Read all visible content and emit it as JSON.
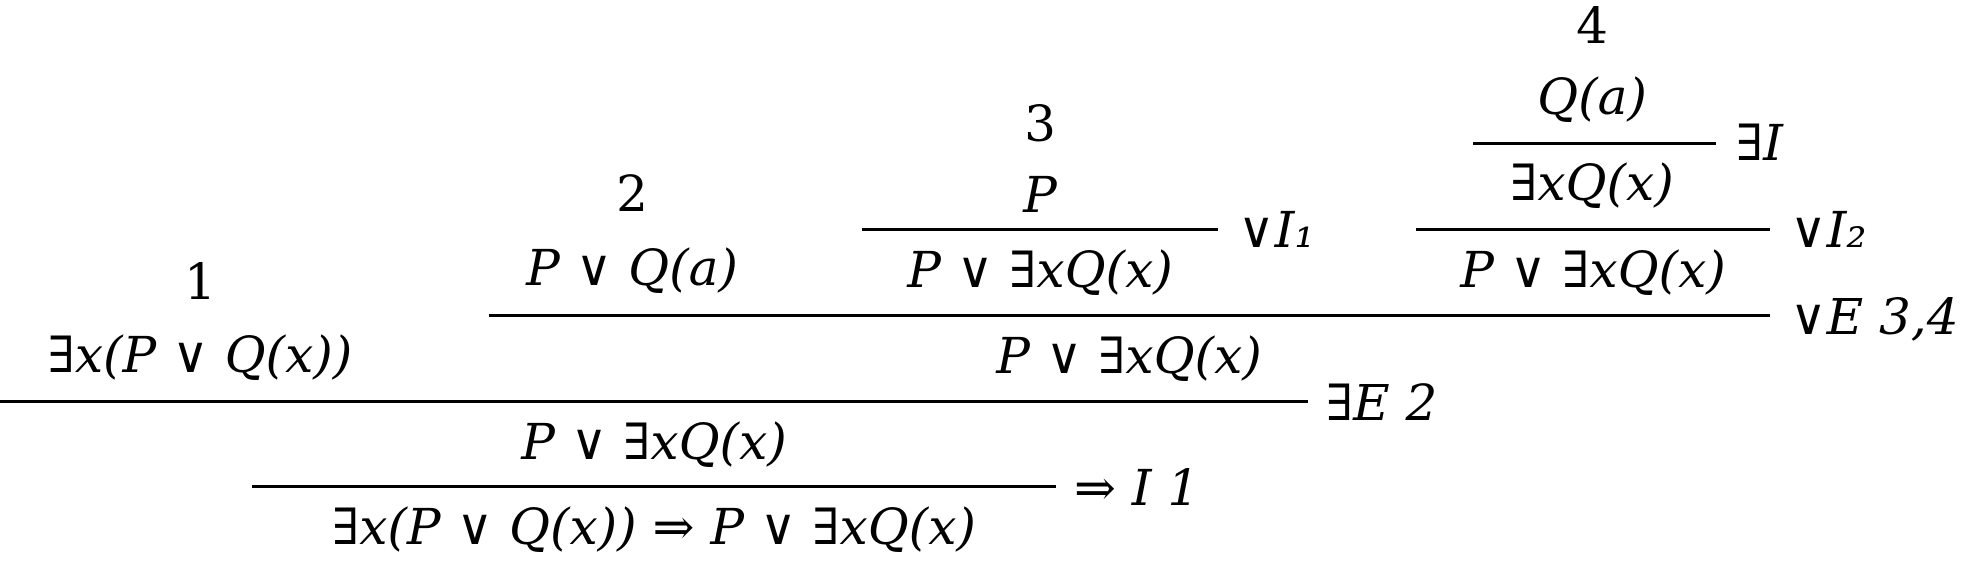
{
  "proof": {
    "hyp1": {
      "label": "1",
      "formula": "∃x(P ∨ Q(x))"
    },
    "hyp2": {
      "label": "2",
      "formula": "P ∨ Q(a)"
    },
    "hyp3": {
      "label": "3",
      "formula": "P",
      "conclusion": "P ∨ ∃xQ(x)",
      "rule": "∨I₁"
    },
    "hyp4": {
      "label": "4",
      "formula": "Q(a)",
      "step": "∃xQ(x)",
      "rule_exists": "∃I",
      "conclusion": "P ∨ ∃xQ(x)",
      "rule": "∨I₂"
    },
    "or_elim": {
      "conclusion": "P ∨ ∃xQ(x)",
      "rule": "∨E 3,4"
    },
    "exists_elim": {
      "conclusion": "P ∨ ∃xQ(x)",
      "rule": "∃E 2"
    },
    "implies_intro": {
      "conclusion": "∃x(P ∨ Q(x)) ⇒ P ∨ ∃xQ(x)",
      "rule": "⇒ I 1"
    }
  }
}
